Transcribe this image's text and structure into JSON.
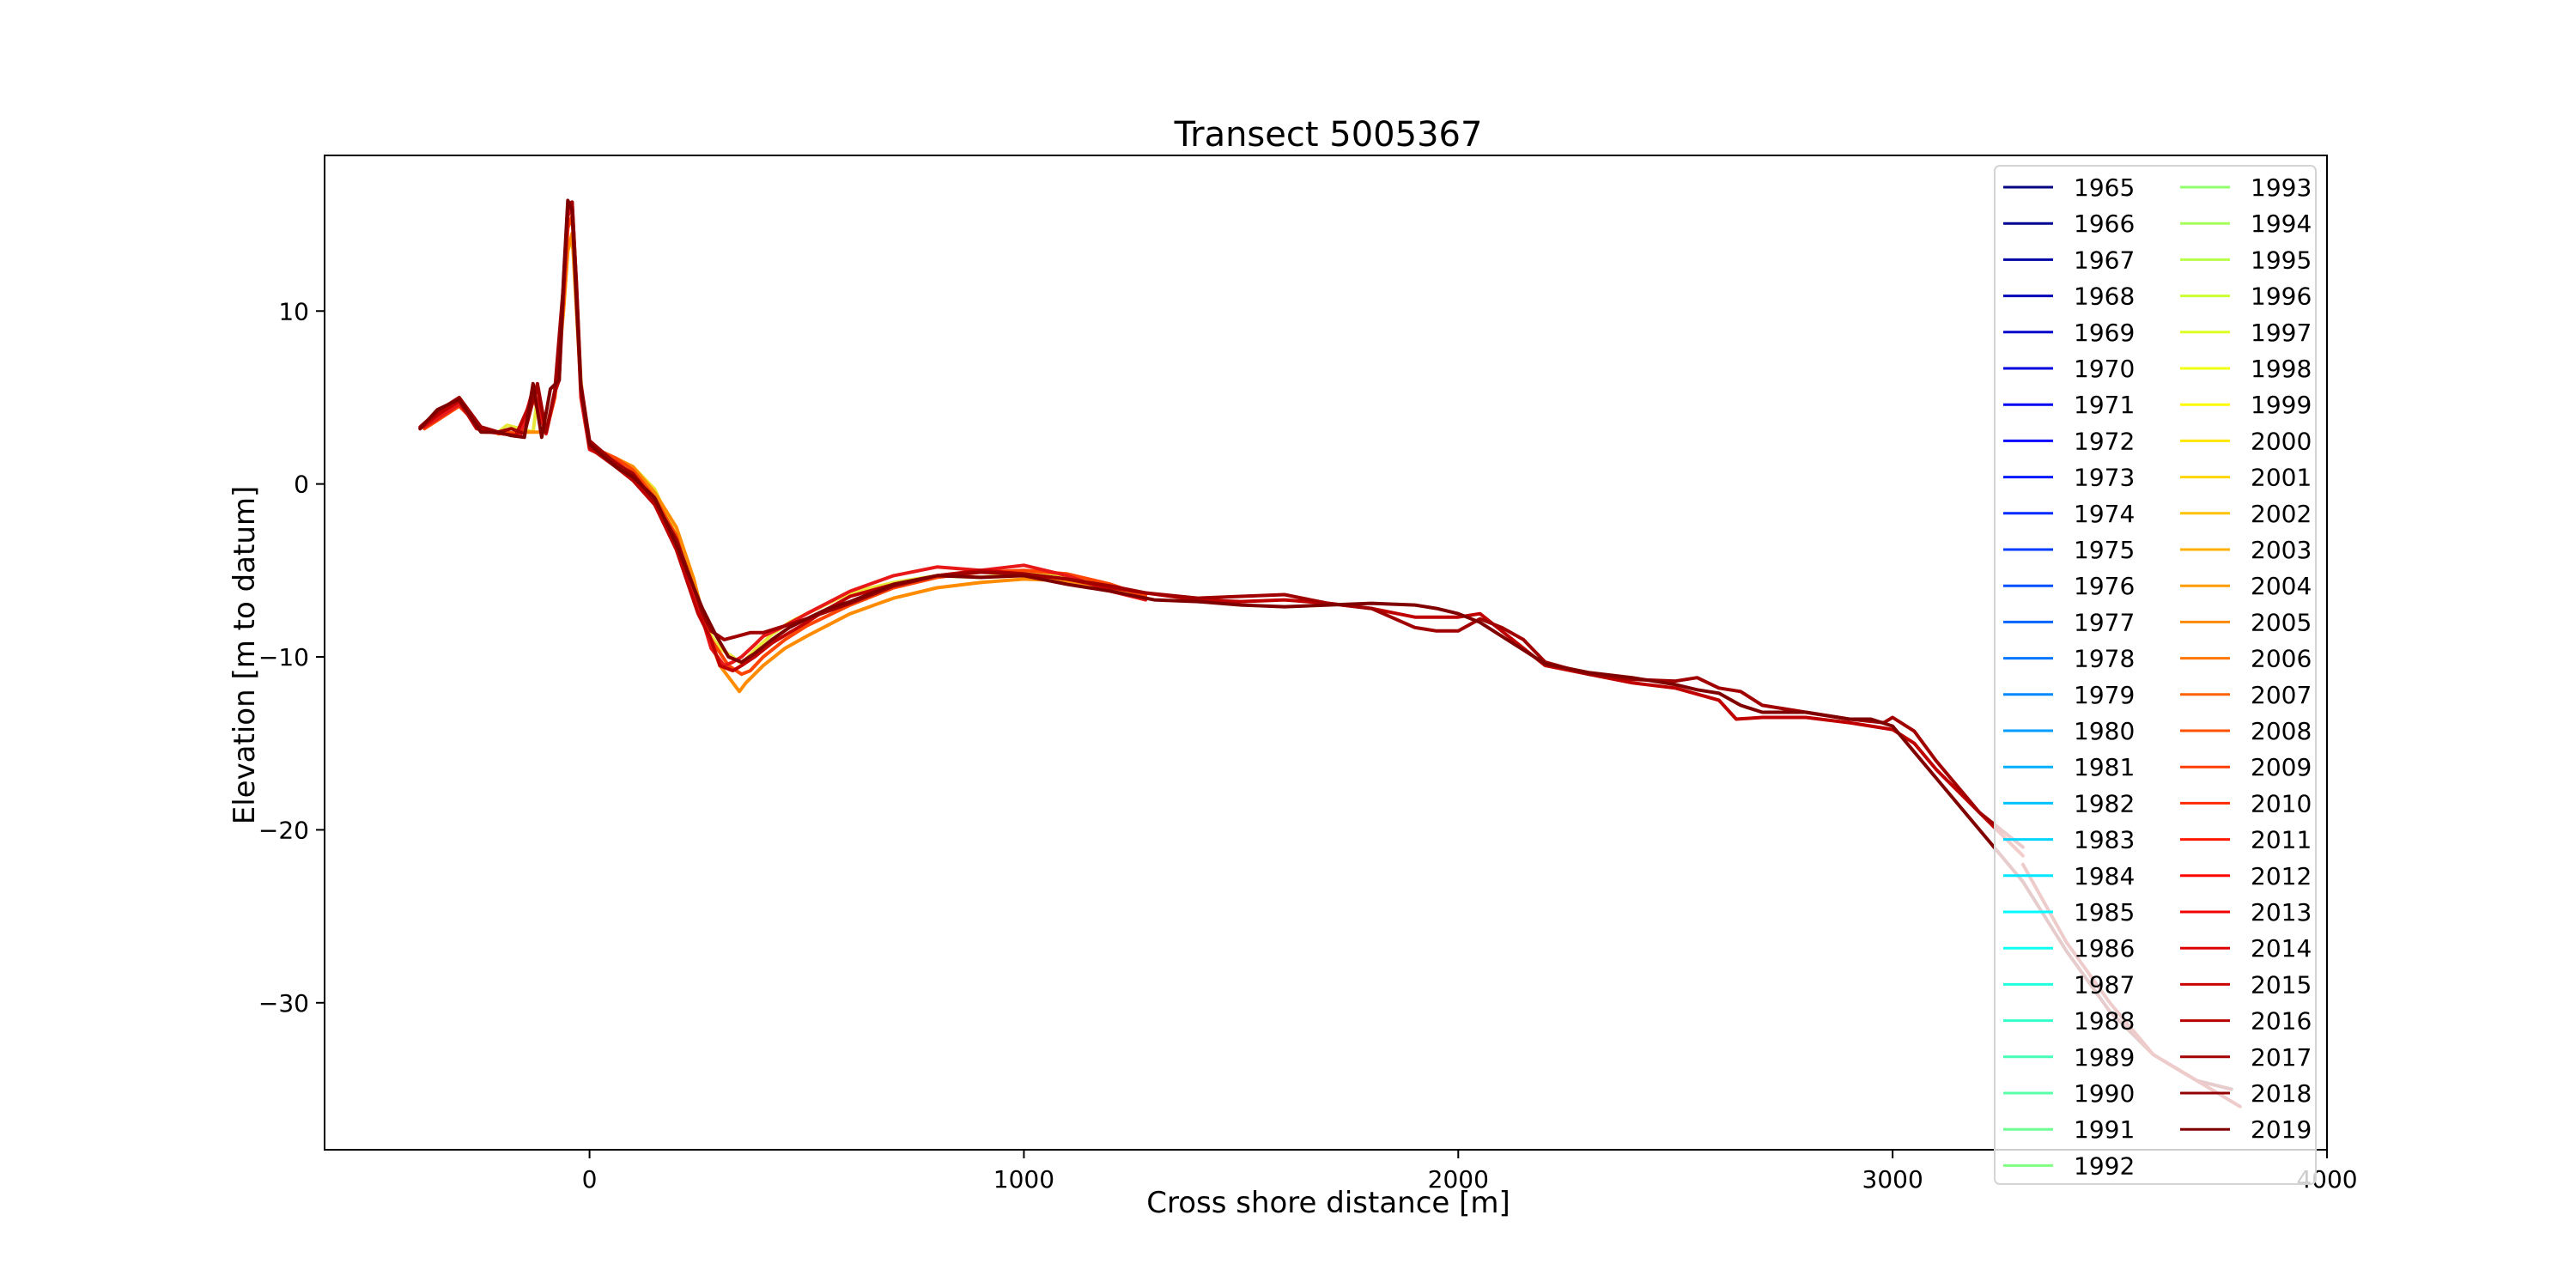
{
  "chart_data": {
    "type": "line",
    "title": "Transect 5005367",
    "xlabel": "Cross shore distance [m]",
    "ylabel": "Elevation [m to datum]",
    "xlim": [
      -610,
      4000
    ],
    "ylim": [
      -38.5,
      19
    ],
    "xticks": [
      0,
      1000,
      2000,
      3000,
      4000
    ],
    "yticks": [
      10,
      0,
      -10,
      -20,
      -30
    ],
    "xtick_labels": [
      "0",
      "1000",
      "2000",
      "3000",
      "4000"
    ],
    "ytick_labels": [
      "10",
      "0",
      "−10",
      "−20",
      "−30"
    ],
    "grid": false,
    "legend_position": "top-right",
    "legend_columns": 2,
    "legend_years": [
      1965,
      1966,
      1967,
      1968,
      1969,
      1970,
      1971,
      1972,
      1973,
      1974,
      1975,
      1976,
      1977,
      1978,
      1979,
      1980,
      1981,
      1982,
      1983,
      1984,
      1985,
      1986,
      1987,
      1988,
      1989,
      1990,
      1991,
      1992,
      1993,
      1994,
      1995,
      1996,
      1997,
      1998,
      1999,
      2000,
      2001,
      2002,
      2003,
      2004,
      2005,
      2006,
      2007,
      2008,
      2009,
      2010,
      2011,
      2012,
      2013,
      2014,
      2015,
      2016,
      2017,
      2018,
      2019
    ],
    "colormap": "jet",
    "series": [
      {
        "name": "2000",
        "color": "#e8e83a",
        "x": [
          -210,
          -190,
          -160,
          -130,
          -120,
          -100,
          -80,
          -70,
          -60,
          -50,
          -40,
          -30,
          -20,
          -10,
          0,
          30,
          60,
          100,
          150,
          200,
          230,
          260,
          300,
          330,
          350,
          380,
          420,
          460,
          500,
          600,
          700,
          800,
          900,
          1000,
          1100,
          1200,
          1270
        ],
        "y": [
          3.0,
          3.4,
          3.2,
          3.0,
          5.0,
          3.2,
          5.0,
          7.2,
          10.0,
          13.5,
          14.2,
          11.0,
          6.0,
          3.5,
          2.3,
          1.6,
          1.4,
          1.0,
          -0.3,
          -3.0,
          -5.5,
          -8.0,
          -9.5,
          -10.0,
          -10.4,
          -9.6,
          -8.7,
          -8.0,
          -7.5,
          -6.3,
          -5.7,
          -5.3,
          -5.4,
          -5.2,
          -5.3,
          -5.8,
          -6.5
        ]
      },
      {
        "name": "2006",
        "color": "#ff8c00",
        "x": [
          -210,
          -160,
          -130,
          -100,
          -80,
          -60,
          -50,
          -40,
          -30,
          -20,
          0,
          60,
          100,
          150,
          200,
          240,
          270,
          300,
          330,
          345,
          360,
          400,
          450,
          500,
          600,
          700,
          800,
          900,
          1000,
          1100,
          1200,
          1280
        ],
        "y": [
          2.9,
          3.0,
          3.0,
          3.0,
          5.0,
          10.0,
          13.5,
          14.5,
          10.0,
          5.5,
          2.0,
          1.5,
          1.0,
          -0.5,
          -2.5,
          -5.5,
          -8.5,
          -10.5,
          -11.5,
          -12.0,
          -11.5,
          -10.5,
          -9.5,
          -8.8,
          -7.5,
          -6.6,
          -6.0,
          -5.7,
          -5.5,
          -5.6,
          -6.0,
          -6.4
        ]
      },
      {
        "name": "2010",
        "color": "#ff4500",
        "x": [
          -380,
          -300,
          -240,
          -200,
          -160,
          -130,
          -100,
          -80,
          -60,
          -50,
          -40,
          -30,
          -20,
          0,
          60,
          100,
          150,
          200,
          240,
          280,
          320,
          350,
          370,
          400,
          450,
          500,
          600,
          700,
          800,
          900,
          1000,
          1100,
          1200,
          1280
        ],
        "y": [
          3.2,
          4.5,
          3.0,
          3.0,
          2.9,
          5.0,
          3.0,
          5.0,
          10.5,
          14.8,
          15.5,
          11.0,
          5.5,
          2.2,
          1.5,
          0.8,
          -0.8,
          -3.0,
          -6.5,
          -9.0,
          -10.5,
          -11.0,
          -10.8,
          -10.0,
          -9.0,
          -8.2,
          -7.0,
          -6.0,
          -5.4,
          -5.1,
          -5.0,
          -5.2,
          -5.8,
          -6.5
        ]
      },
      {
        "name": "2013",
        "color": "#e81818",
        "x": [
          -380,
          -300,
          -250,
          -200,
          -160,
          -130,
          -100,
          -80,
          -60,
          -50,
          -40,
          -30,
          -20,
          0,
          60,
          100,
          150,
          200,
          250,
          280,
          310,
          330,
          350,
          380,
          400,
          450,
          500,
          600,
          700,
          800,
          900,
          1000,
          1100,
          1200,
          1280
        ],
        "y": [
          3.3,
          4.6,
          3.2,
          2.9,
          2.8,
          5.5,
          2.9,
          5.2,
          11.0,
          15.5,
          16.0,
          11.0,
          5.0,
          2.0,
          1.3,
          0.5,
          -1.0,
          -3.5,
          -7.0,
          -9.5,
          -10.5,
          -10.3,
          -10.0,
          -9.3,
          -8.8,
          -8.2,
          -7.5,
          -6.2,
          -5.3,
          -4.8,
          -5.0,
          -4.7,
          -5.3,
          -6.2,
          -6.7
        ]
      },
      {
        "name": "2016",
        "color": "#c00000",
        "x": [
          -390,
          -350,
          -300,
          -260,
          -230,
          -200,
          -170,
          -140,
          -120,
          -100,
          -80,
          -70,
          -60,
          -50,
          -40,
          -30,
          -20,
          0,
          60,
          100,
          150,
          200,
          250,
          280,
          300,
          330,
          350,
          380,
          420,
          460,
          500,
          550,
          600,
          700,
          800,
          900,
          1000,
          1100,
          1200,
          1280,
          1400,
          1500,
          1600,
          1700,
          1800,
          1900,
          2000,
          2050,
          2100,
          2150,
          2200,
          2300,
          2400,
          2500,
          2600,
          2640,
          2700,
          2800,
          2900,
          2950,
          3000,
          3050,
          3100,
          3200,
          3300
        ],
        "y": [
          3.2,
          4.0,
          4.8,
          3.2,
          3.0,
          2.9,
          2.8,
          4.5,
          5.5,
          3.0,
          5.3,
          6.0,
          11.0,
          16.0,
          16.3,
          11.5,
          5.5,
          2.1,
          1.0,
          0.2,
          -1.2,
          -3.8,
          -7.5,
          -9.0,
          -10.5,
          -10.8,
          -10.5,
          -10.0,
          -9.2,
          -8.6,
          -8.0,
          -7.2,
          -6.5,
          -5.8,
          -5.3,
          -5.0,
          -5.2,
          -5.5,
          -6.0,
          -6.3,
          -6.7,
          -6.8,
          -6.7,
          -6.9,
          -7.2,
          -7.7,
          -7.7,
          -7.5,
          -8.5,
          -9.5,
          -10.5,
          -11.0,
          -11.5,
          -11.8,
          -12.5,
          -13.6,
          -13.5,
          -13.5,
          -13.8,
          -14.0,
          -14.2,
          -15.0,
          -16.5,
          -19.0,
          -21.5
        ]
      },
      {
        "name": "2018",
        "color": "#a00000",
        "x": [
          -390,
          -350,
          -300,
          -250,
          -210,
          -180,
          -150,
          -120,
          -100,
          -80,
          -60,
          -50,
          -40,
          -30,
          -20,
          0,
          60,
          100,
          150,
          200,
          240,
          260,
          280,
          310,
          340,
          370,
          400,
          450,
          500,
          600,
          700,
          800,
          900,
          1000,
          1100,
          1200,
          1280,
          1400,
          1500,
          1600,
          1700,
          1800,
          1900,
          1950,
          2000,
          2050,
          2100,
          2150,
          2200,
          2300,
          2400,
          2500,
          2550,
          2600,
          2650,
          2700,
          2800,
          2900,
          2980,
          3000,
          3050,
          3100,
          3150,
          3200,
          3300
        ],
        "y": [
          3.3,
          4.2,
          5.0,
          3.3,
          3.0,
          3.2,
          2.9,
          5.8,
          3.0,
          5.4,
          11.5,
          16.2,
          16.3,
          11.5,
          5.8,
          2.5,
          1.2,
          0.6,
          -1.0,
          -3.2,
          -6.0,
          -7.5,
          -8.5,
          -9.0,
          -8.8,
          -8.6,
          -8.6,
          -8.2,
          -7.8,
          -6.9,
          -5.9,
          -5.3,
          -5.1,
          -5.2,
          -5.5,
          -5.9,
          -6.3,
          -6.6,
          -6.5,
          -6.4,
          -6.9,
          -7.2,
          -8.3,
          -8.5,
          -8.5,
          -7.8,
          -8.3,
          -9.0,
          -10.3,
          -11.0,
          -11.3,
          -11.4,
          -11.2,
          -11.8,
          -12.0,
          -12.8,
          -13.2,
          -13.6,
          -13.8,
          -13.5,
          -14.3,
          -16.0,
          -17.5,
          -19.0,
          -21.0
        ]
      },
      {
        "name": "2019",
        "color": "#800000",
        "x": [
          -390,
          -350,
          -300,
          -250,
          -210,
          -180,
          -150,
          -130,
          -110,
          -90,
          -70,
          -60,
          -50,
          -40,
          -30,
          -20,
          0,
          60,
          100,
          150,
          200,
          240,
          260,
          290,
          320,
          350,
          380,
          420,
          460,
          500,
          550,
          600,
          700,
          800,
          900,
          1000,
          1100,
          1200,
          1300,
          1400,
          1500,
          1600,
          1700,
          1800,
          1900,
          1950,
          2000,
          2050,
          2100,
          2150,
          2200,
          2300,
          2400,
          2500,
          2550,
          2600,
          2650,
          2700,
          2800,
          2900,
          2950,
          3000,
          3050,
          3100,
          3200,
          3300,
          3400,
          3500,
          3600,
          3700,
          3780
        ],
        "y": [
          3.2,
          4.3,
          4.9,
          3.0,
          3.0,
          2.8,
          2.7,
          5.8,
          2.7,
          5.5,
          6.0,
          11.8,
          16.4,
          15.8,
          10.5,
          5.5,
          2.3,
          1.0,
          0.4,
          -0.8,
          -3.5,
          -6.0,
          -7.2,
          -8.7,
          -10.0,
          -10.3,
          -9.8,
          -9.0,
          -8.3,
          -7.8,
          -7.2,
          -6.8,
          -5.8,
          -5.3,
          -5.4,
          -5.3,
          -5.8,
          -6.2,
          -6.7,
          -6.8,
          -7.0,
          -7.1,
          -7.0,
          -6.9,
          -7.0,
          -7.2,
          -7.5,
          -8.0,
          -8.8,
          -9.6,
          -10.4,
          -10.9,
          -11.2,
          -11.6,
          -11.9,
          -12.1,
          -12.8,
          -13.2,
          -13.2,
          -13.6,
          -13.6,
          -14.0,
          -15.5,
          -17.0,
          -20.0,
          -23.0,
          -27.0,
          -30.5,
          -33.0,
          -34.5,
          -35.0
        ]
      },
      {
        "name": "2017",
        "color": "#b00000",
        "x": [
          3300,
          3400,
          3500,
          3600,
          3700,
          3800
        ],
        "y": [
          -22.0,
          -26.5,
          -30.0,
          -33.0,
          -34.5,
          -36.0
        ]
      }
    ]
  }
}
